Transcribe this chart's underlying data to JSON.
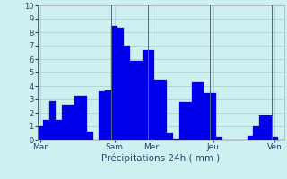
{
  "xlabel": "Précipitations 24h ( mm )",
  "background_color": "#cff0f0",
  "bar_color": "#0000ee",
  "bar_edge_color": "#0000cc",
  "ylim": [
    0,
    10
  ],
  "yticks": [
    0,
    1,
    2,
    3,
    4,
    5,
    6,
    7,
    8,
    9,
    10
  ],
  "grid_color": "#aacccc",
  "values": [
    1.0,
    1.5,
    2.9,
    1.5,
    2.6,
    2.6,
    3.3,
    3.3,
    0.6,
    0.0,
    3.6,
    3.7,
    8.5,
    8.3,
    7.0,
    5.9,
    5.9,
    6.7,
    6.7,
    4.5,
    4.5,
    0.5,
    0.1,
    2.8,
    2.8,
    4.3,
    4.3,
    3.5,
    3.5,
    0.2,
    0.0,
    0.0,
    0.0,
    0.0,
    0.3,
    1.0,
    1.8,
    1.8,
    0.2,
    0.0
  ],
  "day_labels": [
    "Mar",
    "Sam",
    "Mer",
    "Jeu",
    "Ven"
  ],
  "day_positions": [
    0,
    12,
    18,
    28,
    38
  ],
  "vline_color": "#556677",
  "tick_color": "#224466",
  "xlabel_fontsize": 7.5,
  "ytick_fontsize": 6,
  "xtick_fontsize": 6.5
}
